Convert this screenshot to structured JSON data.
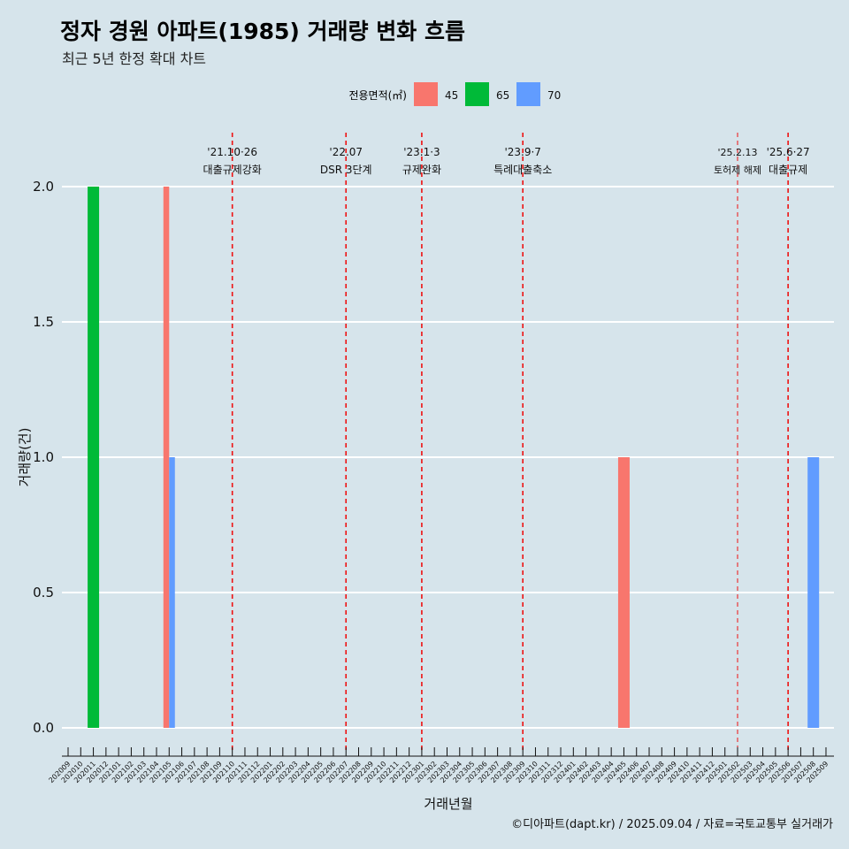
{
  "title": "정자 경원 아파트(1985) 거래량 변화 흐름",
  "subtitle": "최근 5년 한정 확대 차트",
  "caption": "©디아파트(dapt.kr) / 2025.09.04 / 자료=국토교통부 실거래가",
  "chart_data": {
    "type": "bar",
    "xlabel": "거래년월",
    "ylabel": "거래량(건)",
    "ylim": [
      0,
      2
    ],
    "yticks": [
      "0.0",
      "0.5",
      "1.0",
      "1.5",
      "2.0"
    ],
    "legend": {
      "title": "전용면적(㎡)",
      "position": "top"
    },
    "categories": [
      "202009",
      "202010",
      "202011",
      "202012",
      "202101",
      "202102",
      "202103",
      "202104",
      "202105",
      "202106",
      "202107",
      "202108",
      "202109",
      "202110",
      "202111",
      "202112",
      "202201",
      "202202",
      "202203",
      "202204",
      "202205",
      "202206",
      "202207",
      "202208",
      "202209",
      "202210",
      "202211",
      "202212",
      "202301",
      "202302",
      "202303",
      "202304",
      "202305",
      "202306",
      "202307",
      "202308",
      "202309",
      "202310",
      "202311",
      "202312",
      "202401",
      "202402",
      "202403",
      "202404",
      "202405",
      "202406",
      "202407",
      "202408",
      "202409",
      "202410",
      "202411",
      "202412",
      "202501",
      "202502",
      "202503",
      "202504",
      "202505",
      "202506",
      "202507",
      "202508",
      "202509"
    ],
    "series": [
      {
        "name": "45",
        "color": "#f8766d",
        "points": [
          {
            "x": "202105",
            "y": 2
          },
          {
            "x": "202405",
            "y": 1
          }
        ]
      },
      {
        "name": "65",
        "color": "#00ba38",
        "points": [
          {
            "x": "202011",
            "y": 2
          }
        ]
      },
      {
        "name": "70",
        "color": "#619cff",
        "points": [
          {
            "x": "202105",
            "y": 1
          },
          {
            "x": "202508",
            "y": 1
          }
        ]
      }
    ],
    "annotations": [
      {
        "x": "202110",
        "date": "'21.10·26",
        "label": "대출규제강화"
      },
      {
        "x": "202207",
        "date": "'22.07",
        "label": "DSR 3단계"
      },
      {
        "x": "202301",
        "date": "'23.1·3",
        "label": "규제완화"
      },
      {
        "x": "202309",
        "date": "'23.9·7",
        "label": "특례대출축소"
      },
      {
        "x": "202502",
        "date": "'25.2.13",
        "label": "토허제 해제"
      },
      {
        "x": "202506",
        "date": "'25.6·27",
        "label": "대출규제"
      }
    ]
  }
}
